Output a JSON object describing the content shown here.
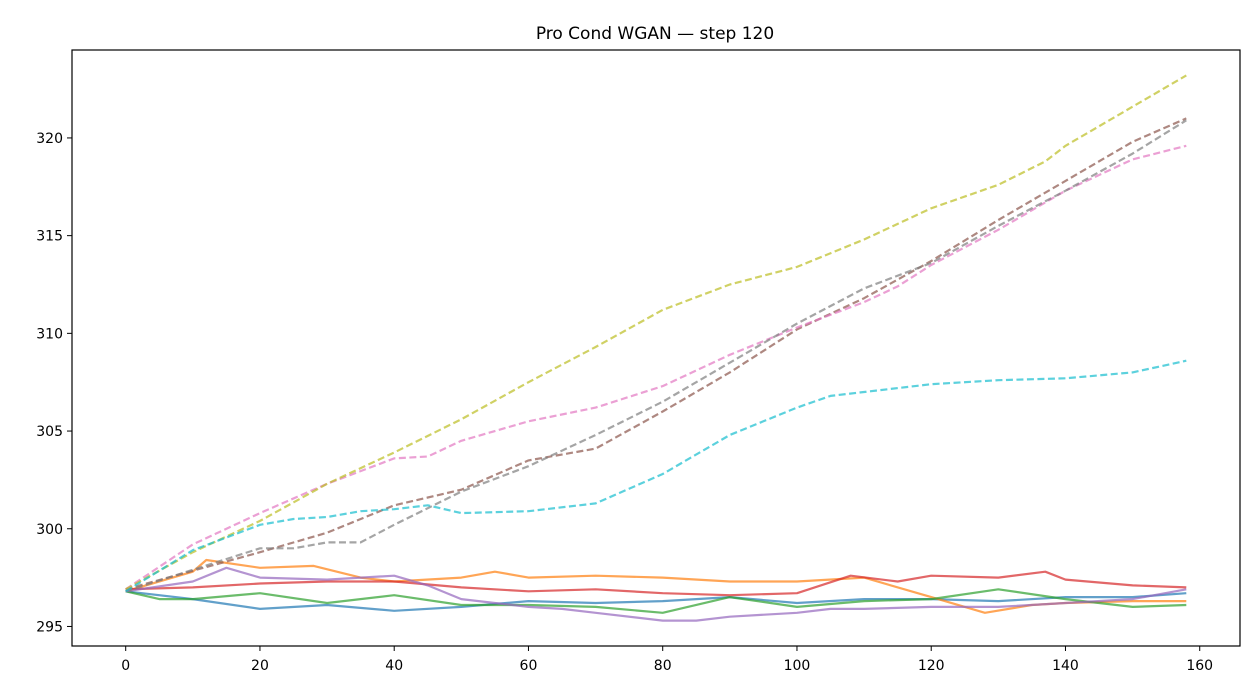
{
  "chart_data": {
    "type": "line",
    "title": "Pro Cond WGAN — step 120",
    "xlabel": "",
    "ylabel": "",
    "xlim": [
      -8,
      166
    ],
    "ylim": [
      294,
      324.5
    ],
    "xticks": [
      0,
      20,
      40,
      60,
      80,
      100,
      120,
      140,
      160
    ],
    "yticks": [
      295,
      300,
      305,
      310,
      315,
      320
    ],
    "grid": false,
    "legend": "none",
    "series": [
      {
        "color": "#1f77b4",
        "dashed": false,
        "x": [
          0,
          10,
          20,
          30,
          40,
          50,
          60,
          70,
          80,
          90,
          100,
          110,
          120,
          130,
          140,
          150,
          158
        ],
        "y": [
          296.8,
          296.4,
          295.9,
          296.1,
          295.8,
          296.0,
          296.3,
          296.2,
          296.3,
          296.5,
          296.2,
          296.4,
          296.4,
          296.3,
          296.5,
          296.5,
          296.7
        ]
      },
      {
        "color": "#ff7f0e",
        "dashed": false,
        "x": [
          0,
          10,
          12,
          20,
          28,
          35,
          40,
          50,
          55,
          60,
          70,
          80,
          90,
          100,
          110,
          120,
          128,
          135,
          140,
          150,
          158
        ],
        "y": [
          296.8,
          297.8,
          298.4,
          298.0,
          298.1,
          297.5,
          297.3,
          297.5,
          297.8,
          297.5,
          297.6,
          297.5,
          297.3,
          297.3,
          297.5,
          296.5,
          295.7,
          296.1,
          296.2,
          296.3,
          296.3
        ]
      },
      {
        "color": "#2ca02c",
        "dashed": false,
        "x": [
          0,
          5,
          10,
          20,
          30,
          40,
          50,
          60,
          70,
          80,
          90,
          100,
          110,
          120,
          130,
          140,
          150,
          158
        ],
        "y": [
          296.8,
          296.4,
          296.4,
          296.7,
          296.2,
          296.6,
          296.1,
          296.1,
          296.0,
          295.7,
          296.5,
          296.0,
          296.3,
          296.4,
          296.9,
          296.4,
          296.0,
          296.1
        ]
      },
      {
        "color": "#d62728",
        "dashed": false,
        "x": [
          0,
          10,
          20,
          30,
          40,
          50,
          60,
          70,
          80,
          90,
          100,
          108,
          115,
          120,
          130,
          137,
          140,
          150,
          158
        ],
        "y": [
          296.9,
          297.0,
          297.2,
          297.3,
          297.3,
          297.0,
          296.8,
          296.9,
          296.7,
          296.6,
          296.7,
          297.6,
          297.3,
          297.6,
          297.5,
          297.8,
          297.4,
          297.1,
          297.0
        ]
      },
      {
        "color": "#9467bd",
        "dashed": false,
        "x": [
          0,
          10,
          15,
          20,
          30,
          40,
          45,
          50,
          60,
          65,
          70,
          80,
          85,
          90,
          100,
          105,
          110,
          120,
          130,
          140,
          150,
          158
        ],
        "y": [
          296.8,
          297.3,
          298.0,
          297.5,
          297.4,
          297.6,
          297.1,
          296.4,
          296.0,
          295.9,
          295.7,
          295.3,
          295.3,
          295.5,
          295.7,
          295.9,
          295.9,
          296.0,
          296.0,
          296.2,
          296.4,
          296.9
        ]
      },
      {
        "color": "#8c564b",
        "dashed": true,
        "x": [
          0,
          20,
          30,
          40,
          45,
          50,
          60,
          70,
          80,
          90,
          100,
          110,
          120,
          130,
          140,
          150,
          158
        ],
        "y": [
          296.9,
          298.8,
          299.8,
          301.2,
          301.6,
          302.0,
          303.5,
          304.1,
          306.0,
          308.0,
          310.2,
          311.8,
          313.7,
          315.8,
          317.8,
          319.8,
          321.0
        ]
      },
      {
        "color": "#e377c2",
        "dashed": true,
        "x": [
          0,
          10,
          20,
          30,
          40,
          45,
          50,
          60,
          70,
          80,
          90,
          100,
          110,
          115,
          120,
          130,
          140,
          150,
          158
        ],
        "y": [
          296.9,
          299.2,
          300.8,
          302.3,
          303.6,
          303.7,
          304.5,
          305.5,
          306.2,
          307.3,
          308.9,
          310.3,
          311.6,
          312.4,
          313.5,
          315.3,
          317.3,
          318.9,
          319.6
        ]
      },
      {
        "color": "#7f7f7f",
        "dashed": true,
        "x": [
          0,
          20,
          25,
          30,
          35,
          40,
          50,
          60,
          70,
          80,
          90,
          100,
          110,
          120,
          130,
          140,
          150,
          158
        ],
        "y": [
          296.8,
          299.0,
          299.0,
          299.3,
          299.3,
          300.2,
          301.9,
          303.2,
          304.8,
          306.5,
          308.5,
          310.5,
          312.3,
          313.6,
          315.5,
          317.3,
          319.2,
          320.9
        ]
      },
      {
        "color": "#bcbd22",
        "dashed": true,
        "x": [
          0,
          10,
          20,
          30,
          40,
          50,
          60,
          70,
          80,
          90,
          100,
          110,
          120,
          130,
          137,
          140,
          150,
          158
        ],
        "y": [
          296.9,
          298.8,
          300.4,
          302.3,
          303.9,
          305.6,
          307.5,
          309.3,
          311.2,
          312.5,
          313.4,
          314.8,
          316.4,
          317.6,
          318.8,
          319.6,
          321.6,
          323.2
        ]
      },
      {
        "color": "#17becf",
        "dashed": true,
        "x": [
          0,
          10,
          20,
          25,
          30,
          35,
          40,
          45,
          50,
          60,
          70,
          80,
          90,
          100,
          105,
          110,
          120,
          130,
          140,
          150,
          158
        ],
        "y": [
          296.8,
          298.9,
          300.2,
          300.5,
          300.6,
          300.9,
          301.0,
          301.2,
          300.8,
          300.9,
          301.3,
          302.8,
          304.8,
          306.2,
          306.8,
          307.0,
          307.4,
          307.6,
          307.7,
          308.0,
          308.6
        ]
      }
    ]
  }
}
